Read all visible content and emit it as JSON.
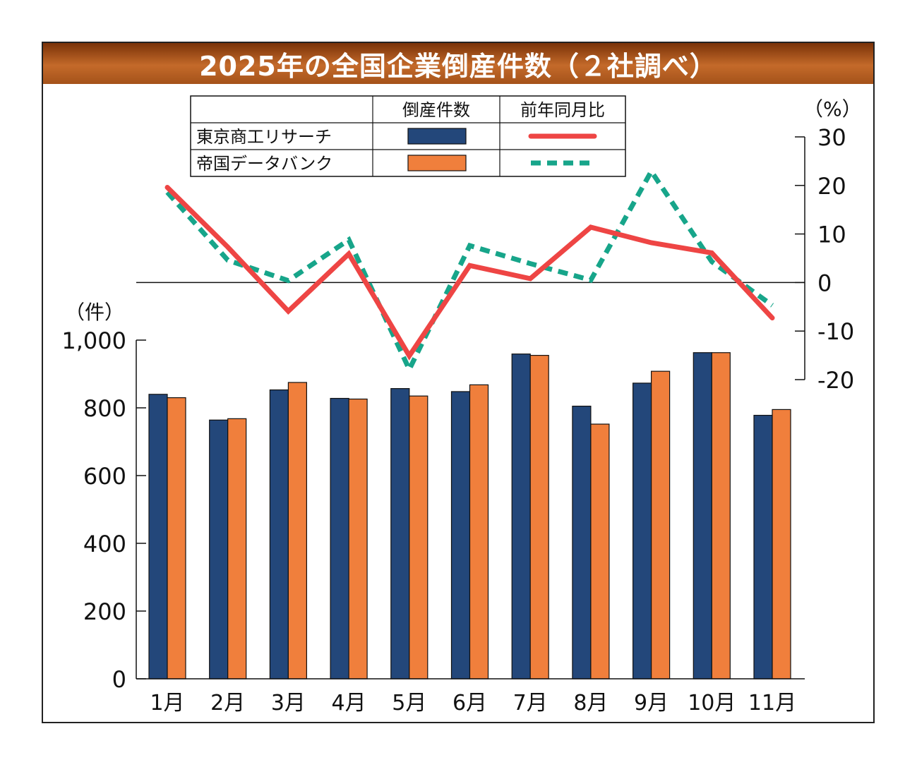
{
  "chart_data": {
    "type": "bar",
    "title": "2025年の全国企業倒産件数（２社調べ）",
    "categories": [
      "1月",
      "2月",
      "3月",
      "4月",
      "5月",
      "6月",
      "7月",
      "8月",
      "9月",
      "10月",
      "11月"
    ],
    "series": [
      {
        "name": "東京商工リサーチ",
        "kind": "bar",
        "color": "#23477a",
        "values": [
          840,
          764,
          853,
          828,
          857,
          848,
          959,
          805,
          873,
          963,
          778
        ]
      },
      {
        "name": "帝国データバンク",
        "kind": "bar",
        "color": "#f07f3c",
        "values": [
          830,
          768,
          875,
          826,
          835,
          868,
          955,
          752,
          908,
          963,
          795
        ]
      },
      {
        "name": "東京商工リサーチ 前年同月比",
        "kind": "line",
        "style": "solid",
        "color": "#ee4544",
        "values": [
          19.6,
          7.3,
          -5.9,
          5.9,
          -15.1,
          3.5,
          0.8,
          11.4,
          8.2,
          6.1,
          -7.3
        ]
      },
      {
        "name": "帝国データバンク 前年同月比",
        "kind": "line",
        "style": "dashed",
        "color": "#17a58a",
        "values": [
          18.6,
          4.6,
          0.4,
          8.8,
          -17.9,
          7.6,
          3.9,
          0.5,
          22.9,
          4.3,
          -4.7
        ]
      }
    ],
    "y_left": {
      "unit": "（件）",
      "ylim": [
        0,
        1000
      ],
      "ticks": [
        "0",
        "200",
        "400",
        "600",
        "800",
        "1,000"
      ]
    },
    "y_right": {
      "unit": "（%）",
      "ylim": [
        -20,
        30
      ],
      "ticks": [
        "-20",
        "-10",
        "0",
        "10",
        "20",
        "30"
      ]
    },
    "legend": {
      "position": "top-left",
      "col_headers": [
        "倒産件数",
        "前年同月比"
      ],
      "rows": [
        "東京商工リサーチ",
        "帝国データバンク"
      ]
    }
  }
}
